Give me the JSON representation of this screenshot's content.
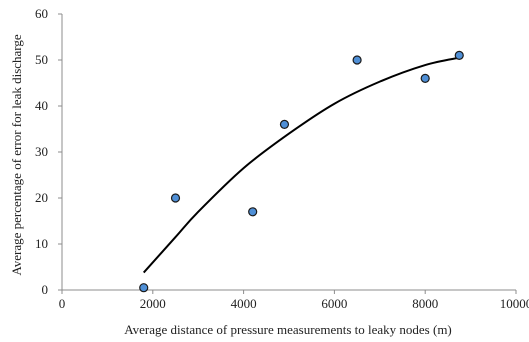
{
  "chart_data": {
    "type": "scatter",
    "xlabel": "Average  distance of pressure measurements to leaky nodes (m)",
    "ylabel": "Average  percentage of error for leak discharge",
    "xlim": [
      0,
      10000
    ],
    "ylim": [
      0,
      60
    ],
    "x_ticks": [
      0,
      2000,
      4000,
      6000,
      8000,
      10000
    ],
    "y_ticks": [
      0,
      10,
      20,
      30,
      40,
      50,
      60
    ],
    "x_tick_labels": [
      "0",
      "2000",
      "4000",
      "6000",
      "8000",
      "10000"
    ],
    "y_tick_labels": [
      "0",
      "10",
      "20",
      "30",
      "40",
      "50",
      "60"
    ],
    "grid": false,
    "series": [
      {
        "points": [
          {
            "x": 1800,
            "y": 0.5
          },
          {
            "x": 2500,
            "y": 20
          },
          {
            "x": 4200,
            "y": 17
          },
          {
            "x": 4900,
            "y": 36
          },
          {
            "x": 6500,
            "y": 50
          },
          {
            "x": 8000,
            "y": 46
          },
          {
            "x": 8750,
            "y": 51
          }
        ],
        "marker_color": "#4f8fd6",
        "marker_edge": "#1a1a1a"
      }
    ],
    "trendline": {
      "type": "polynomial",
      "x_range": [
        1800,
        8750
      ],
      "points": [
        {
          "x": 1800,
          "y": 3.8
        },
        {
          "x": 2500,
          "y": 11.5
        },
        {
          "x": 3000,
          "y": 17
        },
        {
          "x": 4000,
          "y": 26.5
        },
        {
          "x": 5000,
          "y": 34
        },
        {
          "x": 6000,
          "y": 40.5
        },
        {
          "x": 7000,
          "y": 45.3
        },
        {
          "x": 8000,
          "y": 48.9
        },
        {
          "x": 8750,
          "y": 50.5
        }
      ],
      "color": "#000000"
    }
  }
}
